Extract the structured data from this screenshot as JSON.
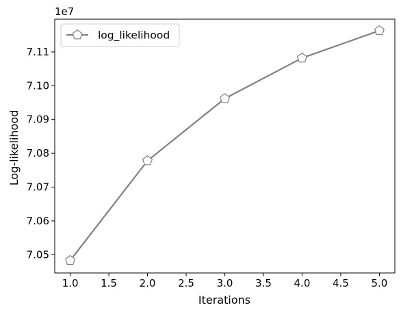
{
  "chart_data": {
    "type": "line",
    "xlabel": "Iterations",
    "ylabel": "Log-likelihood",
    "y_offset_label": "1e7",
    "xlim": [
      0.8,
      5.2
    ],
    "ylim": [
      7.0446,
      7.1197
    ],
    "x_ticks": [
      1.0,
      1.5,
      2.0,
      2.5,
      3.0,
      3.5,
      4.0,
      4.5,
      5.0
    ],
    "x_tick_labels": [
      "1.0",
      "1.5",
      "2.0",
      "2.5",
      "3.0",
      "3.5",
      "4.0",
      "4.5",
      "5.0"
    ],
    "y_ticks": [
      7.05,
      7.06,
      7.07,
      7.08,
      7.09,
      7.1,
      7.11
    ],
    "y_tick_labels": [
      "7.05",
      "7.06",
      "7.07",
      "7.08",
      "7.09",
      "7.10",
      "7.11"
    ],
    "grid": false,
    "legend_position": "upper left",
    "series": [
      {
        "name": "log_likelihood",
        "x": [
          1,
          2,
          3,
          4,
          5
        ],
        "values": [
          7.0483,
          7.0778,
          7.0962,
          7.1082,
          7.1163
        ],
        "color": "#808080",
        "marker": "pentagon"
      }
    ]
  }
}
